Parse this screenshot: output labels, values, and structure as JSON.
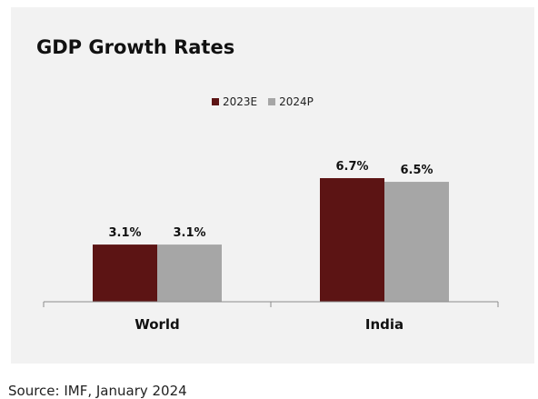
{
  "chart_data": {
    "type": "bar",
    "title": "GDP Growth Rates",
    "categories": [
      "World",
      "India"
    ],
    "series": [
      {
        "name": "2023E",
        "values": [
          3.1,
          6.7
        ],
        "labels": [
          "3.1%",
          "6.7%"
        ],
        "color": "#5c1414"
      },
      {
        "name": "2024P",
        "values": [
          3.1,
          6.5
        ],
        "labels": [
          "3.1%",
          "6.5%"
        ],
        "color": "#a6a6a6"
      }
    ],
    "ylim": [
      0,
      8
    ],
    "grid": false,
    "legend": "top-center",
    "xlabel": "",
    "ylabel": ""
  },
  "source": "Source: IMF, January 2024"
}
